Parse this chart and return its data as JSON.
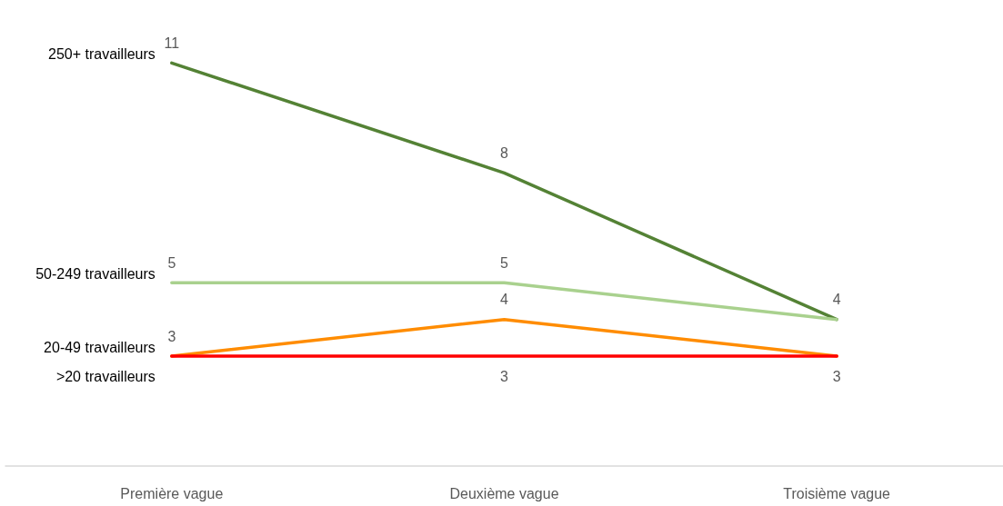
{
  "chart_data": {
    "type": "line",
    "categories": [
      "Première vague",
      "Deuxième vague",
      "Troisième vague"
    ],
    "series": [
      {
        "name": "250+ travailleurs",
        "color": "#548235",
        "values": [
          11,
          8,
          4
        ],
        "value_labels": [
          "11",
          "8",
          "4"
        ]
      },
      {
        "name": "50-249 travailleurs",
        "color": "#a9d18e",
        "values": [
          5,
          5,
          4
        ],
        "value_labels": [
          "5",
          "5",
          null
        ]
      },
      {
        "name": "20-49 travailleurs",
        "color": "#ff8c00",
        "values": [
          3,
          4,
          3
        ],
        "value_labels": [
          "3",
          "4",
          null
        ]
      },
      {
        "name": ">20 travailleurs",
        "color": "#ff0000",
        "values": [
          3,
          3,
          3
        ],
        "value_labels": [
          null,
          "3",
          "3"
        ]
      }
    ],
    "tick_labels": "x",
    "grid": false,
    "legend": false,
    "marker": "none",
    "line_style": "solid"
  }
}
